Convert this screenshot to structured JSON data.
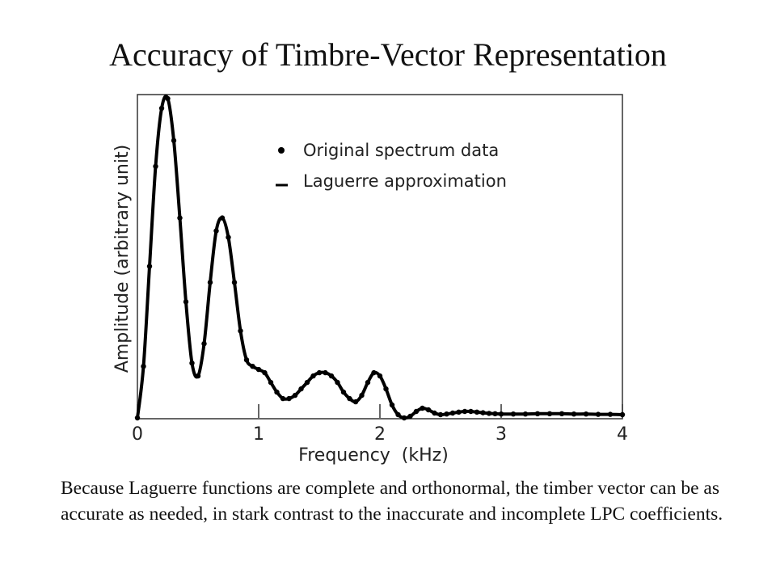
{
  "slide": {
    "title": "Accuracy of Timbre-Vector Representation",
    "caption": "Because Laguerre functions are complete and orthonormal, the timber vector can be as accurate as needed, in stark contrast to the inaccurate and incomplete LPC coefficients."
  },
  "chart_data": {
    "type": "line",
    "xlabel": "Frequency  (kHz)",
    "ylabel": "Amplitude (arbitrary unit)",
    "xlim": [
      0,
      4
    ],
    "ylim": [
      0,
      1
    ],
    "xticks": [
      "0",
      "1",
      "2",
      "3",
      "4"
    ],
    "grid": false,
    "legend_position": "top-right",
    "series": [
      {
        "name": "Original spectrum data",
        "style": "points",
        "x": [
          0,
          0.05,
          0.1,
          0.15,
          0.2,
          0.25,
          0.3,
          0.35,
          0.4,
          0.45,
          0.5,
          0.55,
          0.6,
          0.65,
          0.7,
          0.75,
          0.8,
          0.85,
          0.9,
          0.95,
          1.0,
          1.05,
          1.1,
          1.15,
          1.2,
          1.25,
          1.3,
          1.35,
          1.4,
          1.45,
          1.5,
          1.55,
          1.6,
          1.65,
          1.7,
          1.75,
          1.8,
          1.85,
          1.9,
          1.95,
          2.0,
          2.05,
          2.1,
          2.15,
          2.2,
          2.25,
          2.3,
          2.35,
          2.4,
          2.45,
          2.5,
          2.55,
          2.6,
          2.65,
          2.7,
          2.75,
          2.8,
          2.85,
          2.9,
          2.95,
          3.0,
          3.1,
          3.2,
          3.3,
          3.4,
          3.5,
          3.6,
          3.7,
          3.8,
          3.9,
          4.0
        ],
        "y": [
          0.0,
          0.16,
          0.47,
          0.78,
          0.96,
          0.99,
          0.86,
          0.62,
          0.36,
          0.17,
          0.13,
          0.23,
          0.42,
          0.58,
          0.62,
          0.56,
          0.42,
          0.27,
          0.18,
          0.16,
          0.15,
          0.14,
          0.11,
          0.08,
          0.06,
          0.06,
          0.07,
          0.09,
          0.11,
          0.13,
          0.14,
          0.14,
          0.13,
          0.11,
          0.08,
          0.06,
          0.05,
          0.07,
          0.11,
          0.14,
          0.13,
          0.09,
          0.04,
          0.01,
          0.0,
          0.005,
          0.02,
          0.03,
          0.025,
          0.015,
          0.01,
          0.012,
          0.015,
          0.018,
          0.02,
          0.02,
          0.018,
          0.016,
          0.014,
          0.013,
          0.012,
          0.012,
          0.012,
          0.013,
          0.013,
          0.013,
          0.012,
          0.012,
          0.011,
          0.011,
          0.01
        ]
      },
      {
        "name": "Laguerre approximation",
        "style": "line"
      }
    ]
  }
}
